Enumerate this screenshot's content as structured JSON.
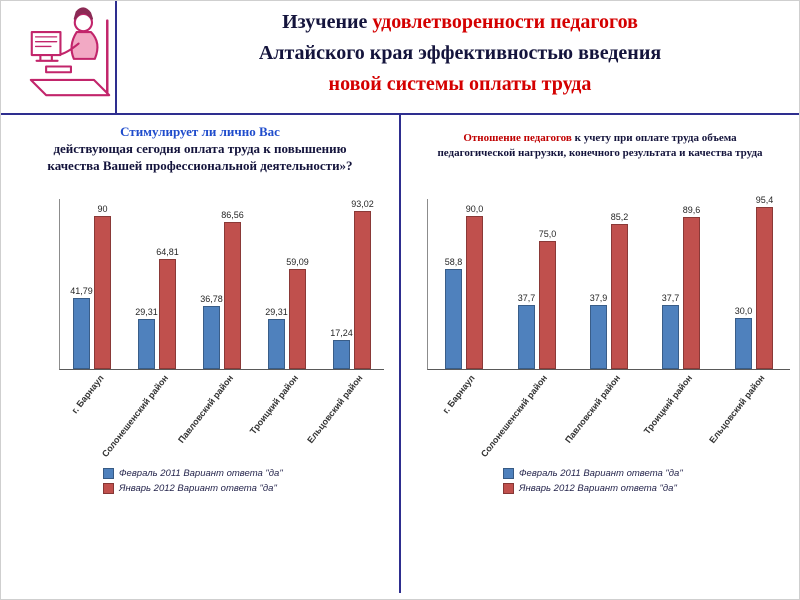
{
  "title": {
    "l1_dark": "Изучение ",
    "l1_red": "удовлетворенности педагогов",
    "l2": "Алтайского края эффективностью введения",
    "l3": "новой системы оплаты труда"
  },
  "panels": [
    {
      "accent": "Стимулирует ли лично Вас",
      "rest": "действующая сегодня оплата труда  к повышению качества Вашей профессиональной деятельности»?"
    },
    {
      "accent": "Отношение педагогов",
      "rest": " к учету при оплате труда объема педагогической нагрузки, конечного результата и качества труда"
    }
  ],
  "chart_data": [
    {
      "type": "bar",
      "title": "Стимулирует ли лично Вас действующая сегодня оплата труда к повышению качества Вашей профессиональной деятельности»?",
      "categories": [
        "г. Барнаул",
        "Солонешенский район",
        "Павловский район",
        "Троицкий район",
        "Ельцовский район"
      ],
      "series": [
        {
          "name": "Февраль 2011 Вариант ответа \"да\"",
          "color": "#4f81bd",
          "values": [
            41.79,
            29.31,
            36.78,
            29.31,
            17.24
          ],
          "labels": [
            "41,79",
            "29,31",
            "36,78",
            "29,31",
            "17,24"
          ]
        },
        {
          "name": "Январь 2012 Вариант ответа \"да\"",
          "color": "#c0504d",
          "values": [
            90,
            64.81,
            86.56,
            59.09,
            93.02
          ],
          "labels": [
            "90",
            "64,81",
            "86,56",
            "59,09",
            "93,02"
          ]
        }
      ],
      "xlabel": "",
      "ylabel": "",
      "ylim": [
        0,
        100
      ],
      "grid": false,
      "legend_position": "bottom"
    },
    {
      "type": "bar",
      "title": "Отношение педагогов к учету при оплате труда объема педагогической нагрузки, конечного результата и качества труда",
      "categories": [
        "г. Барнаул",
        "Солонешенский район",
        "Павловский район",
        "Троицкий район",
        "Ельцовский район"
      ],
      "series": [
        {
          "name": "Февраль 2011 Вариант ответа \"да\"",
          "color": "#4f81bd",
          "values": [
            58.8,
            37.7,
            37.9,
            37.7,
            30.0
          ],
          "labels": [
            "58,8",
            "37,7",
            "37,9",
            "37,7",
            "30,0"
          ]
        },
        {
          "name": "Январь 2012 Вариант ответа \"да\"",
          "color": "#c0504d",
          "values": [
            90.0,
            75.0,
            85.2,
            89.6,
            95.4
          ],
          "labels": [
            "90,0",
            "75,0",
            "85,2",
            "89,6",
            "95,4"
          ]
        }
      ],
      "xlabel": "",
      "ylabel": "",
      "ylim": [
        0,
        100
      ],
      "grid": false,
      "legend_position": "bottom"
    }
  ]
}
